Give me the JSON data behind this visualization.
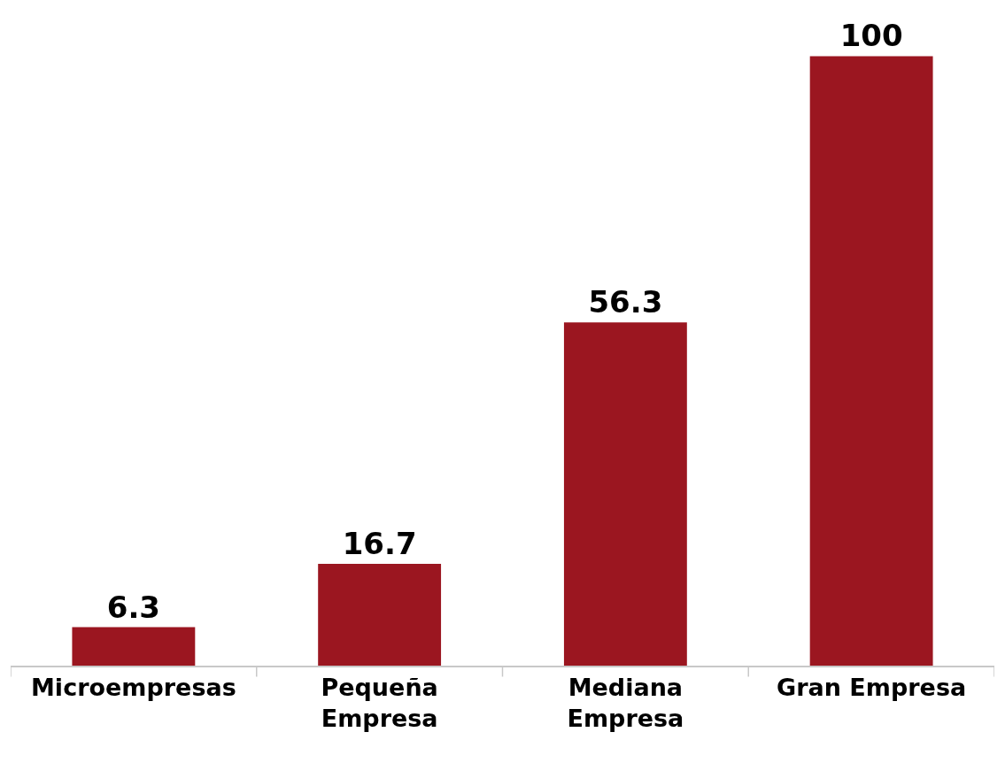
{
  "chart_data": {
    "type": "bar",
    "categories": [
      "Microempresas",
      "Pequeña Empresa",
      "Mediana Empresa",
      "Gran Empresa"
    ],
    "values": [
      6.3,
      16.7,
      56.3,
      100
    ],
    "color": "#9b1620",
    "data_labels": true
  }
}
